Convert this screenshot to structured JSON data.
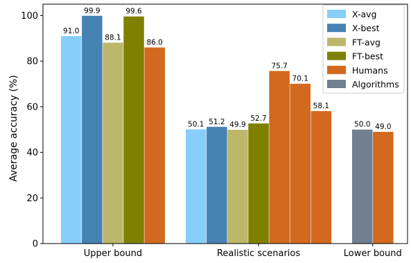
{
  "chart_data": {
    "type": "bar",
    "ylabel": "Average accuracy (%)",
    "ylim": [
      0,
      105
    ],
    "yticks": [
      0,
      20,
      40,
      60,
      80,
      100
    ],
    "legend_position": "top-right",
    "legend": [
      {
        "name": "X-avg",
        "color": "#87cefa"
      },
      {
        "name": "X-best",
        "color": "#4682b4"
      },
      {
        "name": "FT-avg",
        "color": "#bdb76b"
      },
      {
        "name": "FT-best",
        "color": "#808000"
      },
      {
        "name": "Humans",
        "color": "#d2691e"
      },
      {
        "name": "Algorithms",
        "color": "#708090"
      }
    ],
    "groups": [
      {
        "label": "Upper bound",
        "bars": [
          {
            "series": "X-avg",
            "value": 91.0,
            "label": "91.0"
          },
          {
            "series": "X-best",
            "value": 99.9,
            "label": "99.9"
          },
          {
            "series": "FT-avg",
            "value": 88.1,
            "label": "88.1"
          },
          {
            "series": "FT-best",
            "value": 99.6,
            "label": "99.6"
          },
          {
            "series": "Humans",
            "value": 86.0,
            "label": "86.0"
          }
        ]
      },
      {
        "label": "Realistic scenarios",
        "bars": [
          {
            "series": "X-avg",
            "value": 50.1,
            "label": "50.1"
          },
          {
            "series": "X-best",
            "value": 51.2,
            "label": "51.2"
          },
          {
            "series": "FT-avg",
            "value": 49.9,
            "label": "49.9"
          },
          {
            "series": "FT-best",
            "value": 52.7,
            "label": "52.7"
          },
          {
            "series": "Humans",
            "value": 75.7,
            "label": "75.7"
          },
          {
            "series": "Humans",
            "value": 70.1,
            "label": "70.1"
          },
          {
            "series": "Humans",
            "value": 58.1,
            "label": "58.1"
          }
        ]
      },
      {
        "label": "Lower bound",
        "bars": [
          {
            "series": "Algorithms",
            "value": 50.0,
            "label": "50.0"
          },
          {
            "series": "Humans",
            "value": 49.0,
            "label": "49.0"
          }
        ]
      }
    ]
  }
}
